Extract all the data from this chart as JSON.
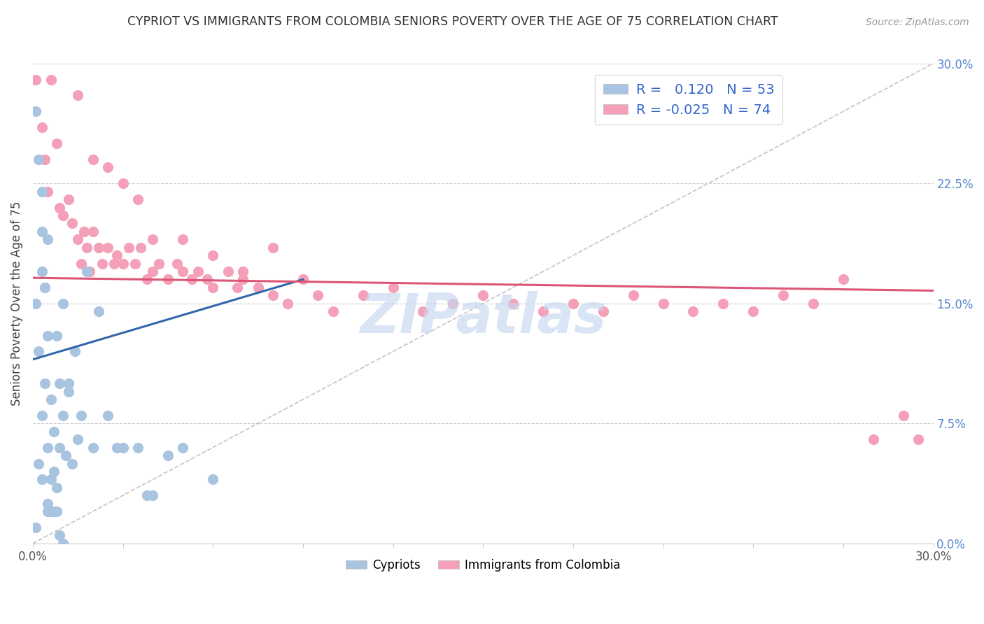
{
  "title": "CYPRIOT VS IMMIGRANTS FROM COLOMBIA SENIORS POVERTY OVER THE AGE OF 75 CORRELATION CHART",
  "source_text": "Source: ZipAtlas.com",
  "ylabel": "Seniors Poverty Over the Age of 75",
  "xmin": 0.0,
  "xmax": 0.3,
  "ymin": 0.0,
  "ymax": 0.3,
  "xtick_values": [
    0.0,
    0.03,
    0.06,
    0.09,
    0.12,
    0.15,
    0.18,
    0.21,
    0.24,
    0.27,
    0.3
  ],
  "xtick_labels_only_ends": [
    "0.0%",
    "",
    "",
    "",
    "",
    "",
    "",
    "",
    "",
    "",
    "30.0%"
  ],
  "ytick_labels": [
    "0.0%",
    "7.5%",
    "15.0%",
    "22.5%",
    "30.0%"
  ],
  "ytick_values": [
    0.0,
    0.075,
    0.15,
    0.225,
    0.3
  ],
  "legend_r1": "R =   0.120",
  "legend_n1": "N = 53",
  "legend_r2": "R = -0.025",
  "legend_n2": "N = 74",
  "color_blue": "#a8c4e0",
  "color_pink": "#f4a0b8",
  "trend_blue": "#3366aa",
  "trend_pink": "#dd5577",
  "diag_color": "#aaaaaa",
  "watermark": "ZIPatlas",
  "watermark_color": "#c5d8f0",
  "cypriot_x": [
    0.001,
    0.001,
    0.002,
    0.002,
    0.003,
    0.003,
    0.003,
    0.004,
    0.004,
    0.005,
    0.005,
    0.005,
    0.006,
    0.006,
    0.007,
    0.007,
    0.008,
    0.008,
    0.009,
    0.009,
    0.01,
    0.01,
    0.011,
    0.012,
    0.013,
    0.014,
    0.015,
    0.016,
    0.018,
    0.02,
    0.022,
    0.025,
    0.028,
    0.03,
    0.035,
    0.038,
    0.04,
    0.045,
    0.05,
    0.06,
    0.001,
    0.002,
    0.003,
    0.004,
    0.005,
    0.006,
    0.007,
    0.008,
    0.009,
    0.01,
    0.012,
    0.003,
    0.005
  ],
  "cypriot_y": [
    0.15,
    0.01,
    0.05,
    0.12,
    0.08,
    0.17,
    0.04,
    0.1,
    0.16,
    0.02,
    0.06,
    0.13,
    0.04,
    0.09,
    0.02,
    0.07,
    0.035,
    0.13,
    0.06,
    0.1,
    0.15,
    0.08,
    0.055,
    0.1,
    0.05,
    0.12,
    0.065,
    0.08,
    0.17,
    0.06,
    0.145,
    0.08,
    0.06,
    0.06,
    0.06,
    0.03,
    0.03,
    0.055,
    0.06,
    0.04,
    0.27,
    0.24,
    0.22,
    0.16,
    0.025,
    0.02,
    0.045,
    0.02,
    0.005,
    0.0,
    0.095,
    0.195,
    0.19
  ],
  "colombia_x": [
    0.001,
    0.003,
    0.004,
    0.005,
    0.006,
    0.008,
    0.009,
    0.01,
    0.012,
    0.013,
    0.015,
    0.016,
    0.017,
    0.018,
    0.019,
    0.02,
    0.022,
    0.023,
    0.025,
    0.027,
    0.028,
    0.03,
    0.032,
    0.034,
    0.036,
    0.038,
    0.04,
    0.042,
    0.045,
    0.048,
    0.05,
    0.053,
    0.055,
    0.058,
    0.06,
    0.065,
    0.068,
    0.07,
    0.075,
    0.08,
    0.085,
    0.09,
    0.095,
    0.1,
    0.11,
    0.12,
    0.13,
    0.14,
    0.15,
    0.16,
    0.17,
    0.18,
    0.19,
    0.2,
    0.21,
    0.22,
    0.23,
    0.24,
    0.25,
    0.26,
    0.27,
    0.28,
    0.29,
    0.295,
    0.015,
    0.02,
    0.025,
    0.03,
    0.035,
    0.04,
    0.05,
    0.06,
    0.07,
    0.08
  ],
  "colombia_y": [
    0.29,
    0.26,
    0.24,
    0.22,
    0.29,
    0.25,
    0.21,
    0.205,
    0.215,
    0.2,
    0.19,
    0.175,
    0.195,
    0.185,
    0.17,
    0.195,
    0.185,
    0.175,
    0.185,
    0.175,
    0.18,
    0.175,
    0.185,
    0.175,
    0.185,
    0.165,
    0.17,
    0.175,
    0.165,
    0.175,
    0.17,
    0.165,
    0.17,
    0.165,
    0.16,
    0.17,
    0.16,
    0.165,
    0.16,
    0.155,
    0.15,
    0.165,
    0.155,
    0.145,
    0.155,
    0.16,
    0.145,
    0.15,
    0.155,
    0.15,
    0.145,
    0.15,
    0.145,
    0.155,
    0.15,
    0.145,
    0.15,
    0.145,
    0.155,
    0.15,
    0.165,
    0.065,
    0.08,
    0.065,
    0.28,
    0.24,
    0.235,
    0.225,
    0.215,
    0.19,
    0.19,
    0.18,
    0.17,
    0.185
  ],
  "cyp_trend_x": [
    0.0,
    0.09
  ],
  "cyp_trend_y": [
    0.115,
    0.165
  ],
  "col_trend_x": [
    0.0,
    0.3
  ],
  "col_trend_y": [
    0.166,
    0.158
  ]
}
